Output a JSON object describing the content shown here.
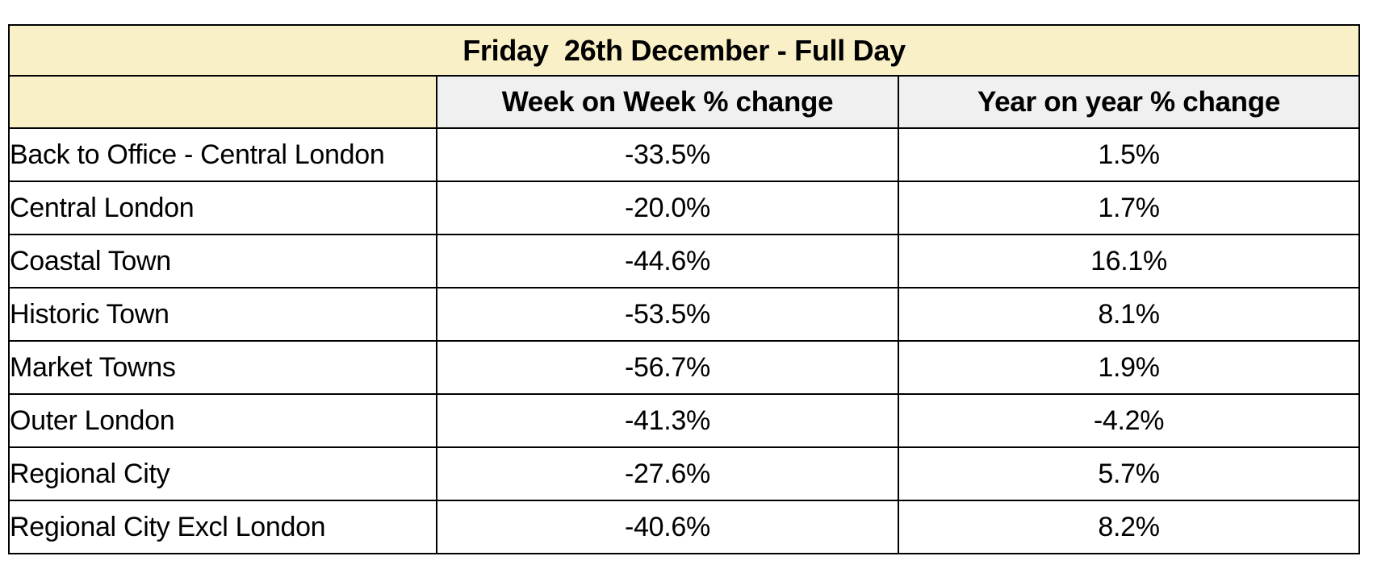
{
  "chart_data": {
    "type": "table",
    "title": "Friday  26th December - Full Day",
    "columns": [
      "",
      "Week on Week % change",
      "Year on year % change"
    ],
    "rows": [
      {
        "label": "Back to Office - Central London",
        "week_on_week": "-33.5%",
        "year_on_year": "1.5%"
      },
      {
        "label": "Central London",
        "week_on_week": "-20.0%",
        "year_on_year": "1.7%"
      },
      {
        "label": "Coastal Town",
        "week_on_week": "-44.6%",
        "year_on_year": "16.1%"
      },
      {
        "label": "Historic Town",
        "week_on_week": "-53.5%",
        "year_on_year": "8.1%"
      },
      {
        "label": "Market Towns",
        "week_on_week": "-56.7%",
        "year_on_year": "1.9%"
      },
      {
        "label": "Outer London",
        "week_on_week": "-41.3%",
        "year_on_year": "-4.2%"
      },
      {
        "label": "Regional City",
        "week_on_week": "-27.6%",
        "year_on_year": "5.7%"
      },
      {
        "label": "Regional City Excl London",
        "week_on_week": "-40.6%",
        "year_on_year": "8.2%"
      }
    ]
  },
  "colors": {
    "title_background": "#FAF0C8",
    "header_background": "#F0F0F0",
    "border": "#000000",
    "text": "#000000",
    "page_background": "#FFFFFF"
  }
}
